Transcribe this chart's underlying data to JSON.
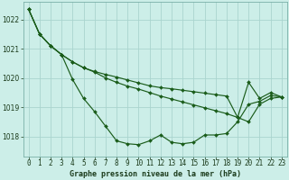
{
  "title": "Graphe pression niveau de la mer (hPa)",
  "background_color": "#cceee8",
  "grid_color": "#aad4ce",
  "line_color": "#1a5c1a",
  "xlim": [
    -0.5,
    23.5
  ],
  "ylim": [
    1017.3,
    1022.6
  ],
  "yticks": [
    1018,
    1019,
    1020,
    1021,
    1022
  ],
  "hours": [
    0,
    1,
    2,
    3,
    4,
    5,
    6,
    7,
    8,
    9,
    10,
    11,
    12,
    13,
    14,
    15,
    16,
    17,
    18,
    19,
    20,
    21,
    22,
    23
  ],
  "series": [
    [
      1022.35,
      1021.5,
      1021.1,
      1020.8,
      1019.95,
      1019.3,
      1018.85,
      1018.35,
      1017.85,
      1017.75,
      1017.72,
      1017.85,
      1018.05,
      1017.8,
      1017.75,
      1017.8,
      1018.05,
      1018.05,
      1018.1,
      1018.5,
      1019.1,
      1019.2,
      1019.4,
      1019.35
    ],
    [
      1022.35,
      1021.5,
      1021.1,
      1020.8,
      1020.55,
      1020.35,
      1020.2,
      1020.0,
      1019.85,
      1019.72,
      1019.62,
      1019.5,
      1019.38,
      1019.28,
      1019.18,
      1019.08,
      1018.98,
      1018.88,
      1018.78,
      1018.65,
      1018.5,
      1019.1,
      1019.3,
      1019.35
    ],
    [
      1022.35,
      1021.5,
      1021.1,
      1020.8,
      1020.55,
      1020.35,
      1020.22,
      1020.12,
      1020.03,
      1019.93,
      1019.83,
      1019.73,
      1019.67,
      1019.63,
      1019.58,
      1019.53,
      1019.48,
      1019.43,
      1019.38,
      1018.65,
      1019.85,
      1019.3,
      1019.5,
      1019.35
    ]
  ],
  "ylabel_fontsize": 5.5,
  "xlabel_fontsize": 5.5,
  "title_fontsize": 6.0,
  "marker_size": 2.0,
  "line_width": 0.85
}
